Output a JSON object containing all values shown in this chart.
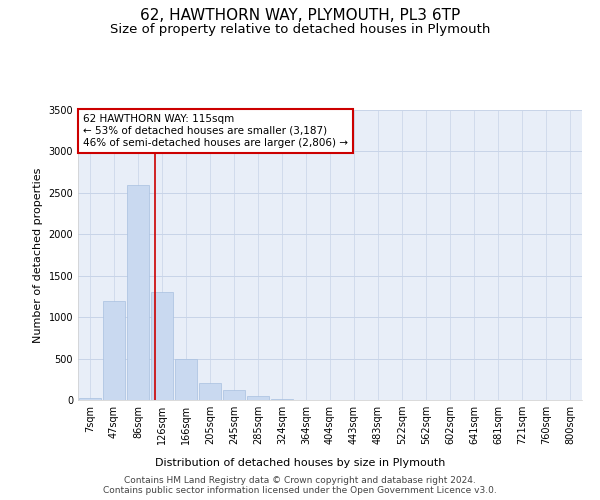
{
  "title": "62, HAWTHORN WAY, PLYMOUTH, PL3 6TP",
  "subtitle": "Size of property relative to detached houses in Plymouth",
  "xlabel": "Distribution of detached houses by size in Plymouth",
  "ylabel": "Number of detached properties",
  "bin_labels": [
    "7sqm",
    "47sqm",
    "86sqm",
    "126sqm",
    "166sqm",
    "205sqm",
    "245sqm",
    "285sqm",
    "324sqm",
    "364sqm",
    "404sqm",
    "443sqm",
    "483sqm",
    "522sqm",
    "562sqm",
    "602sqm",
    "641sqm",
    "681sqm",
    "721sqm",
    "760sqm",
    "800sqm"
  ],
  "bar_heights": [
    30,
    1200,
    2600,
    1300,
    500,
    200,
    120,
    50,
    15,
    5,
    2,
    1,
    0,
    0,
    0,
    0,
    0,
    0,
    0,
    0,
    0
  ],
  "bar_color": "#c9d9f0",
  "bar_edge_color": "#a8c0e0",
  "grid_color": "#c8d4e8",
  "background_color": "#e8eef8",
  "red_line_x": 2.72,
  "annotation_text": "62 HAWTHORN WAY: 115sqm\n← 53% of detached houses are smaller (3,187)\n46% of semi-detached houses are larger (2,806) →",
  "annotation_box_color": "#ffffff",
  "annotation_border_color": "#cc0000",
  "ylim": [
    0,
    3500
  ],
  "yticks": [
    0,
    500,
    1000,
    1500,
    2000,
    2500,
    3000,
    3500
  ],
  "footer_line1": "Contains HM Land Registry data © Crown copyright and database right 2024.",
  "footer_line2": "Contains public sector information licensed under the Open Government Licence v3.0.",
  "title_fontsize": 11,
  "subtitle_fontsize": 9.5,
  "axis_label_fontsize": 8,
  "tick_fontsize": 7,
  "annotation_fontsize": 7.5,
  "footer_fontsize": 6.5
}
